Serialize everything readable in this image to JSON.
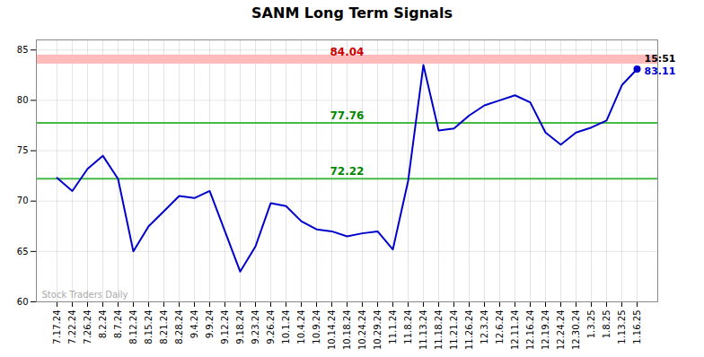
{
  "chart_data": {
    "type": "line",
    "title": "SANM Long Term Signals",
    "categories": [
      "7.17.24",
      "7.22.24",
      "7.26.24",
      "8.2.24",
      "8.7.24",
      "8.12.24",
      "8.15.24",
      "8.21.24",
      "8.28.24",
      "9.4.24",
      "9.9.24",
      "9.12.24",
      "9.18.24",
      "9.23.24",
      "9.26.24",
      "10.1.24",
      "10.4.24",
      "10.9.24",
      "10.14.24",
      "10.18.24",
      "10.24.24",
      "10.29.24",
      "11.1.24",
      "11.8.24",
      "11.13.24",
      "11.18.24",
      "11.21.24",
      "11.26.24",
      "12.3.24",
      "12.6.24",
      "12.11.24",
      "12.16.24",
      "12.19.24",
      "12.24.24",
      "12.30.24",
      "1.3.25",
      "1.8.25",
      "1.13.25",
      "1.16.25"
    ],
    "values": [
      72.3,
      71.0,
      73.2,
      74.5,
      72.2,
      65.0,
      67.5,
      69.0,
      70.5,
      70.3,
      71.0,
      67.0,
      63.0,
      65.5,
      69.8,
      69.5,
      68.0,
      67.2,
      67.0,
      66.5,
      66.8,
      67.0,
      65.2,
      72.0,
      83.5,
      77.0,
      77.2,
      78.5,
      79.5,
      80.0,
      80.5,
      79.8,
      76.8,
      75.6,
      76.8,
      77.3,
      78.0,
      81.5,
      83.11
    ],
    "color": "#0000cc",
    "ylim": [
      60,
      86
    ],
    "yticks": [
      60,
      65,
      70,
      75,
      80,
      85
    ],
    "grid": true,
    "bands": [
      {
        "y1": 83.6,
        "y2": 84.5,
        "color": "#ffbbbb"
      }
    ],
    "hlines": [
      {
        "y": 77.76,
        "color": "#44bb44"
      },
      {
        "y": 72.22,
        "color": "#44bb44"
      }
    ],
    "level_labels": [
      {
        "text": "84.04",
        "y": 84.04,
        "color": "#cc0000"
      },
      {
        "text": "77.76",
        "y": 77.76,
        "color": "#008800"
      },
      {
        "text": "72.22",
        "y": 72.22,
        "color": "#008800"
      }
    ],
    "last_price_label": {
      "text": "83.11",
      "y": 83.11,
      "color": "#0000cc"
    },
    "last_time_label": {
      "text": "15:51",
      "color": "#000000"
    },
    "watermark": {
      "text": "Stock Traders Daily",
      "color": "#aaaaaa"
    }
  }
}
